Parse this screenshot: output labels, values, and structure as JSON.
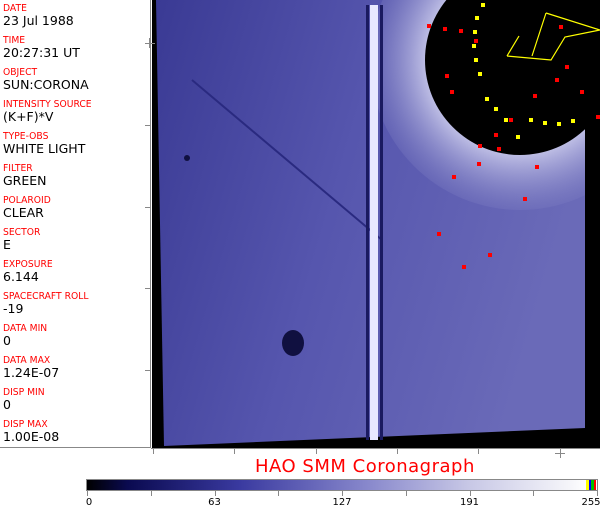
{
  "fields": [
    {
      "label": "DATE",
      "value": "23 Jul 1988"
    },
    {
      "label": "TIME",
      "value": "20:27:31 UT"
    },
    {
      "label": "OBJECT",
      "value": "SUN:CORONA"
    },
    {
      "label": "INTENSITY SOURCE",
      "value": "(K+F)*V"
    },
    {
      "label": "TYPE-OBS",
      "value": "WHITE LIGHT"
    },
    {
      "label": "FILTER",
      "value": "GREEN"
    },
    {
      "label": "POLAROID",
      "value": "CLEAR"
    },
    {
      "label": "SECTOR",
      "value": "E"
    },
    {
      "label": "EXPOSURE",
      "value": "6.144"
    },
    {
      "label": "SPACECRAFT ROLL",
      "value": "-19"
    },
    {
      "label": "DATA MIN",
      "value": "0"
    },
    {
      "label": "DATA MAX",
      "value": "1.24E-07"
    },
    {
      "label": "DISP MIN",
      "value": "0"
    },
    {
      "label": "DISP MAX",
      "value": "1.00E-08"
    }
  ],
  "title": "HAO  SMM Coronagraph",
  "colorbar": {
    "ticks": [
      "0",
      "63",
      "127",
      "191",
      "255"
    ],
    "special_colors": [
      "#ffff00",
      "#0000ff",
      "#00c000",
      "#ff0000"
    ]
  },
  "colors": {
    "label": "#ff0000",
    "image_blue": "#5050a8",
    "occulter": "#000000"
  }
}
